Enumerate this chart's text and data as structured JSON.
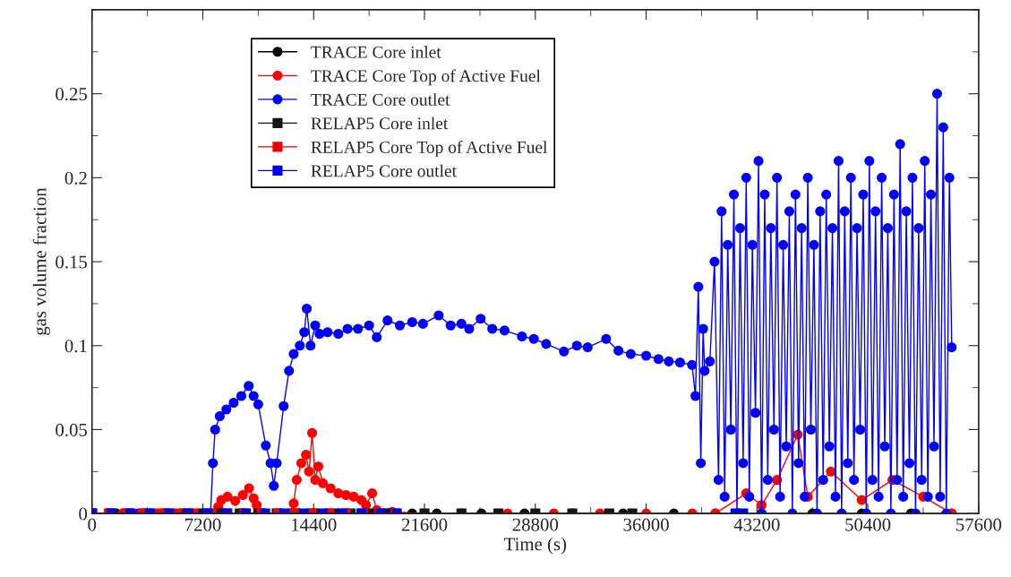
{
  "chart_data": {
    "type": "line",
    "xlabel": "Time (s)",
    "ylabel": "gas volume fraction",
    "xlim": [
      0,
      57600
    ],
    "xticks": [
      0,
      7200,
      14400,
      21600,
      28800,
      36000,
      43200,
      50400,
      57600
    ],
    "ylim": [
      0,
      0.3
    ],
    "yticks": [
      0,
      0.05,
      0.1,
      0.15,
      0.2,
      0.25
    ],
    "grid": false,
    "legend": "top left",
    "line_style": "solid",
    "series": [
      {
        "name": "TRACE Core inlet",
        "color": "#000000",
        "marker": "circle",
        "x": [
          0,
          1600,
          3200,
          4800,
          6400,
          8000,
          9600,
          11200,
          12800,
          14400,
          16000,
          17600,
          19200,
          20800,
          22400,
          25300,
          28100,
          31200,
          34500,
          37800,
          40500,
          43500,
          46800,
          50000,
          53200,
          55850
        ],
        "values": [
          0,
          0,
          0,
          0,
          0,
          0,
          0,
          0,
          0,
          0,
          0,
          0,
          0,
          0,
          0,
          0,
          0,
          0,
          0,
          0,
          0,
          0,
          0,
          0,
          0,
          0
        ]
      },
      {
        "name": "TRACE Core Top of Active Fuel",
        "color": "#ff0000",
        "marker": "circle",
        "x": [
          0,
          2000,
          4000,
          6000,
          8000,
          8200,
          8400,
          8800,
          9300,
          9800,
          10200,
          10500,
          10700,
          11100,
          12800,
          13100,
          13300,
          13600,
          13900,
          14100,
          14300,
          14500,
          14700,
          15000,
          15500,
          16000,
          16500,
          17000,
          17500,
          17800,
          18200,
          18500,
          19500,
          21600,
          24000,
          27000,
          30000,
          33000,
          36000,
          39000,
          40500,
          42500,
          43500,
          44500,
          45850,
          46500,
          48000,
          50000,
          52000,
          54000,
          55850
        ],
        "values": [
          0,
          0,
          0,
          0,
          0,
          0.004,
          0.008,
          0.01,
          0.0075,
          0.011,
          0.015,
          0.009,
          0.005,
          0,
          0,
          0.006,
          0.02,
          0.03,
          0.035,
          0.025,
          0.048,
          0.02,
          0.028,
          0.018,
          0.015,
          0.012,
          0.011,
          0.01,
          0.008,
          0.005,
          0.012,
          0.002,
          0.001,
          0,
          0,
          0,
          0,
          0,
          0,
          0,
          0,
          0.012,
          0.005,
          0.02,
          0.047,
          0.01,
          0.025,
          0.008,
          0.02,
          0.01,
          0
        ]
      },
      {
        "name": "TRACE Core outlet",
        "color": "#0000ff",
        "marker": "circle",
        "x": [
          0,
          3000,
          6000,
          7700,
          7855,
          8000,
          8300,
          8727,
          9200,
          9700,
          10180,
          10500,
          10800,
          11290,
          11600,
          11810,
          12000,
          12450,
          12800,
          13100,
          13500,
          13790,
          13950,
          14200,
          14500,
          14780,
          15300,
          16000,
          16600,
          17280,
          18000,
          18500,
          19200,
          20000,
          20800,
          21500,
          22520,
          23300,
          24000,
          24500,
          25250,
          26000,
          26800,
          27930,
          28700,
          29500,
          30660,
          31500,
          32200,
          33400,
          34200,
          35000,
          36000,
          36800,
          37470,
          38200,
          38980,
          39200,
          39390,
          39550,
          39700,
          39800,
          40140,
          40440,
          40700,
          40900,
          41100,
          41300,
          41500,
          41700,
          41900,
          42100,
          42300,
          42500,
          42700,
          42900,
          43100,
          43300,
          43500,
          43700,
          43900,
          44100,
          44300,
          44500,
          44700,
          44900,
          45100,
          45300,
          45500,
          45700,
          45900,
          46100,
          46300,
          46500,
          46700,
          46900,
          47100,
          47300,
          47500,
          47700,
          47900,
          48100,
          48300,
          48500,
          48700,
          48900,
          49100,
          49300,
          49500,
          49700,
          49900,
          50100,
          50300,
          50500,
          50700,
          50900,
          51100,
          51300,
          51500,
          51700,
          51900,
          52100,
          52300,
          52500,
          52700,
          52900,
          53100,
          53300,
          53500,
          53700,
          53900,
          54100,
          54300,
          54500,
          54700,
          54900,
          55100,
          55300,
          55500,
          55700,
          55850
        ],
        "values": [
          0,
          0,
          0,
          0,
          0.03,
          0.05,
          0.058,
          0.062,
          0.066,
          0.07,
          0.076,
          0.07,
          0.065,
          0.0405,
          0.03,
          0.0165,
          0.03,
          0.064,
          0.085,
          0.095,
          0.1,
          0.108,
          0.122,
          0.1,
          0.112,
          0.107,
          0.108,
          0.107,
          0.11,
          0.11,
          0.112,
          0.105,
          0.115,
          0.112,
          0.114,
          0.113,
          0.118,
          0.112,
          0.113,
          0.11,
          0.116,
          0.11,
          0.109,
          0.1055,
          0.104,
          0.101,
          0.0965,
          0.1,
          0.099,
          0.104,
          0.097,
          0.095,
          0.094,
          0.092,
          0.0906,
          0.09,
          0.0885,
          0.07,
          0.135,
          0.03,
          0.11,
          0.085,
          0.0906,
          0.15,
          0.02,
          0.18,
          0.01,
          0.16,
          0.05,
          0.19,
          0.0,
          0.17,
          0.03,
          0.2,
          0.01,
          0.16,
          0.06,
          0.21,
          0.0,
          0.19,
          0.02,
          0.17,
          0.05,
          0.2,
          0.01,
          0.16,
          0.04,
          0.18,
          0.0,
          0.19,
          0.03,
          0.17,
          0.01,
          0.2,
          0.05,
          0.16,
          0.0,
          0.18,
          0.02,
          0.19,
          0.04,
          0.17,
          0.01,
          0.21,
          0.0,
          0.18,
          0.03,
          0.2,
          0.02,
          0.17,
          0.05,
          0.19,
          0.0,
          0.21,
          0.02,
          0.18,
          0.01,
          0.2,
          0.04,
          0.17,
          0.0,
          0.19,
          0.02,
          0.22,
          0.01,
          0.18,
          0.03,
          0.2,
          0.0,
          0.17,
          0.02,
          0.21,
          0.01,
          0.19,
          0.04,
          0.25,
          0.01,
          0.23,
          0.0,
          0.2,
          0.099
        ]
      },
      {
        "name": "RELAP5 Core inlet",
        "color": "#141414",
        "marker": "square",
        "x": [
          0,
          1200,
          2400,
          3600,
          4800,
          6000,
          7200,
          8400,
          9600,
          10800,
          12000,
          13200,
          14400,
          15600,
          16800,
          18000,
          19200,
          21600,
          24000,
          26400,
          28800,
          31200,
          33600,
          35100
        ],
        "values": [
          0,
          0,
          0,
          0,
          0,
          0,
          0,
          0,
          0,
          0,
          0,
          0,
          0,
          0,
          0,
          0,
          0,
          0,
          0,
          0,
          0,
          0,
          0,
          0
        ]
      },
      {
        "name": "RELAP5 Core Top of Active Fuel",
        "color": "#eb0000",
        "marker": "square",
        "x": [
          0,
          1100,
          2200,
          3300,
          4400,
          5500,
          6600,
          7700,
          8800,
          9900,
          11000,
          12100,
          13200,
          14300,
          15400,
          16500,
          17600,
          18700,
          19700
        ],
        "values": [
          0,
          0,
          0,
          0,
          0,
          0,
          0,
          0,
          0,
          0,
          0,
          0,
          0,
          0,
          0,
          0,
          0,
          0,
          0
        ]
      },
      {
        "name": "RELAP5 Core outlet",
        "color": "#0000eb",
        "marker": "square",
        "x": [
          0,
          1250,
          2500,
          3750,
          5000,
          6250,
          7500,
          8750,
          10000,
          11250,
          12500,
          13750,
          15000,
          16250,
          17500,
          18750,
          19800,
          30000,
          41800,
          42300
        ],
        "values": [
          0,
          0,
          0,
          0,
          0,
          0,
          0,
          0,
          0,
          0,
          0,
          0,
          0,
          0,
          0,
          0,
          0,
          null,
          0,
          0
        ]
      }
    ]
  }
}
